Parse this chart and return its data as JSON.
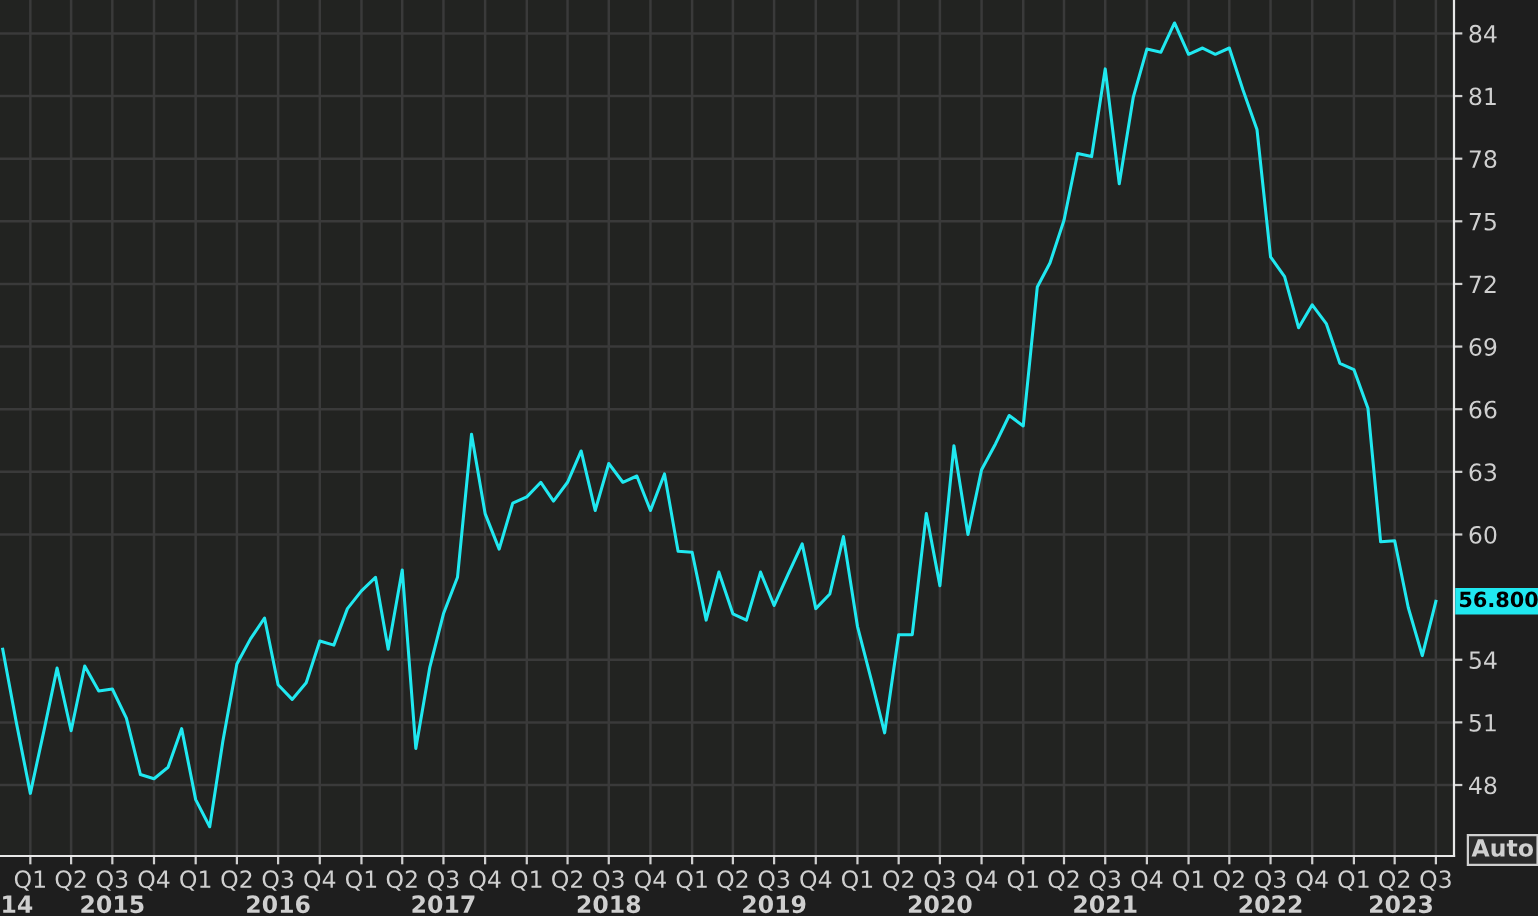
{
  "chart_data": {
    "type": "line",
    "x": [
      "2014-11",
      "2014-12",
      "2015-01",
      "2015-02",
      "2015-03",
      "2015-04",
      "2015-05",
      "2015-06",
      "2015-07",
      "2015-08",
      "2015-09",
      "2015-10",
      "2015-11",
      "2015-12",
      "2016-01",
      "2016-02",
      "2016-03",
      "2016-04",
      "2016-05",
      "2016-06",
      "2016-07",
      "2016-08",
      "2016-09",
      "2016-10",
      "2016-11",
      "2016-12",
      "2017-01",
      "2017-02",
      "2017-03",
      "2017-04",
      "2017-05",
      "2017-06",
      "2017-07",
      "2017-08",
      "2017-09",
      "2017-10",
      "2017-11",
      "2017-12",
      "2018-01",
      "2018-02",
      "2018-03",
      "2018-04",
      "2018-05",
      "2018-06",
      "2018-07",
      "2018-08",
      "2018-09",
      "2018-10",
      "2018-11",
      "2018-12",
      "2019-01",
      "2019-02",
      "2019-03",
      "2019-04",
      "2019-05",
      "2019-06",
      "2019-07",
      "2019-08",
      "2019-09",
      "2019-10",
      "2019-11",
      "2019-12",
      "2020-01",
      "2020-02",
      "2020-03",
      "2020-04",
      "2020-05",
      "2020-06",
      "2020-07",
      "2020-08",
      "2020-09",
      "2020-10",
      "2020-11",
      "2020-12",
      "2021-01",
      "2021-02",
      "2021-03",
      "2021-04",
      "2021-05",
      "2021-06",
      "2021-07",
      "2021-08",
      "2021-09",
      "2021-10",
      "2021-11",
      "2021-12",
      "2022-01",
      "2022-02",
      "2022-03",
      "2022-04",
      "2022-05",
      "2022-06",
      "2022-07",
      "2022-08",
      "2022-09",
      "2022-10",
      "2022-11",
      "2022-12",
      "2023-01",
      "2023-02",
      "2023-03",
      "2023-04",
      "2023-05",
      "2023-06",
      "2023-07"
    ],
    "series": [
      {
        "color": "#20e8f0",
        "values": [
          54.5,
          51.0,
          47.6,
          50.7,
          53.6,
          50.6,
          53.7,
          52.5,
          52.6,
          51.2,
          48.5,
          48.3,
          48.85,
          50.7,
          47.3,
          46.0,
          50.1,
          53.8,
          55.0,
          56.0,
          52.8,
          52.1,
          52.9,
          54.9,
          54.7,
          56.45,
          57.3,
          57.95,
          54.5,
          58.3,
          49.75,
          53.65,
          56.2,
          57.95,
          64.8,
          61.0,
          59.3,
          61.5,
          61.8,
          62.5,
          61.6,
          62.5,
          64.0,
          61.15,
          63.4,
          62.5,
          62.8,
          61.15,
          62.9,
          59.2,
          59.15,
          55.9,
          58.2,
          56.2,
          55.9,
          58.2,
          56.6,
          58.1,
          59.55,
          56.45,
          57.15,
          59.9,
          55.6,
          53.0,
          50.5,
          55.2,
          55.2,
          61.0,
          57.55,
          64.25,
          60.0,
          63.1,
          64.35,
          65.7,
          65.2,
          71.85,
          73.0,
          75.05,
          78.25,
          78.1,
          82.3,
          76.8,
          80.95,
          83.25,
          83.1,
          84.5,
          83.0,
          83.3,
          83.0,
          83.3,
          81.3,
          79.4,
          73.3,
          72.35,
          69.9,
          71.0,
          70.1,
          68.2,
          67.9,
          66.05,
          59.65,
          59.7,
          56.5,
          54.2,
          56.8
        ]
      }
    ],
    "xlim": [
      "2014-10-26",
      "2023-08-10"
    ],
    "ylim": [
      44.6,
      85.6
    ],
    "yticks": [
      48,
      51,
      54,
      60,
      63,
      66,
      69,
      72,
      75,
      78,
      81,
      84
    ],
    "xticks": [
      {
        "value": "2015-01-01",
        "label": "Q1"
      },
      {
        "value": "2015-04-01",
        "label": "Q2"
      },
      {
        "value": "2015-07-01",
        "label": "Q3"
      },
      {
        "value": "2015-10-01",
        "label": "Q4"
      },
      {
        "value": "2016-01-01",
        "label": "Q1"
      },
      {
        "value": "2016-04-01",
        "label": "Q2"
      },
      {
        "value": "2016-07-01",
        "label": "Q3"
      },
      {
        "value": "2016-10-01",
        "label": "Q4"
      },
      {
        "value": "2017-01-01",
        "label": "Q1"
      },
      {
        "value": "2017-04-01",
        "label": "Q2"
      },
      {
        "value": "2017-07-01",
        "label": "Q3"
      },
      {
        "value": "2017-10-01",
        "label": "Q4"
      },
      {
        "value": "2018-01-01",
        "label": "Q1"
      },
      {
        "value": "2018-04-01",
        "label": "Q2"
      },
      {
        "value": "2018-07-01",
        "label": "Q3"
      },
      {
        "value": "2018-10-01",
        "label": "Q4"
      },
      {
        "value": "2019-01-01",
        "label": "Q1"
      },
      {
        "value": "2019-04-01",
        "label": "Q2"
      },
      {
        "value": "2019-07-01",
        "label": "Q3"
      },
      {
        "value": "2019-10-01",
        "label": "Q4"
      },
      {
        "value": "2020-01-01",
        "label": "Q1"
      },
      {
        "value": "2020-04-01",
        "label": "Q2"
      },
      {
        "value": "2020-07-01",
        "label": "Q3"
      },
      {
        "value": "2020-10-01",
        "label": "Q4"
      },
      {
        "value": "2021-01-01",
        "label": "Q1"
      },
      {
        "value": "2021-04-01",
        "label": "Q2"
      },
      {
        "value": "2021-07-01",
        "label": "Q3"
      },
      {
        "value": "2021-10-01",
        "label": "Q4"
      },
      {
        "value": "2022-01-01",
        "label": "Q1"
      },
      {
        "value": "2022-04-01",
        "label": "Q2"
      },
      {
        "value": "2022-07-01",
        "label": "Q3"
      },
      {
        "value": "2022-10-01",
        "label": "Q4"
      },
      {
        "value": "2023-01-01",
        "label": "Q1"
      },
      {
        "value": "2023-04-01",
        "label": "Q2"
      },
      {
        "value": "2023-07-01",
        "label": "Q3"
      }
    ],
    "x2lim": [
      "2014-10-26",
      "2023-08-10"
    ],
    "x2ticks": [
      {
        "value": "2014-10-27",
        "label": "14"
      },
      {
        "value": "2015-07-01",
        "label": "2015"
      },
      {
        "value": "2016-07-01",
        "label": "2016"
      },
      {
        "value": "2017-07-01",
        "label": "2017"
      },
      {
        "value": "2018-07-01",
        "label": "2018"
      },
      {
        "value": "2019-07-01",
        "label": "2019"
      },
      {
        "value": "2020-07-01",
        "label": "2020"
      },
      {
        "value": "2021-07-01",
        "label": "2021"
      },
      {
        "value": "2022-07-01",
        "label": "2022"
      },
      {
        "value": "2023-04-15",
        "label": "2023"
      }
    ],
    "grid": true,
    "legend": false,
    "annotations": [
      {
        "text": "56.800",
        "x": "2023-07",
        "y": 56.8
      },
      "Auto"
    ]
  }
}
